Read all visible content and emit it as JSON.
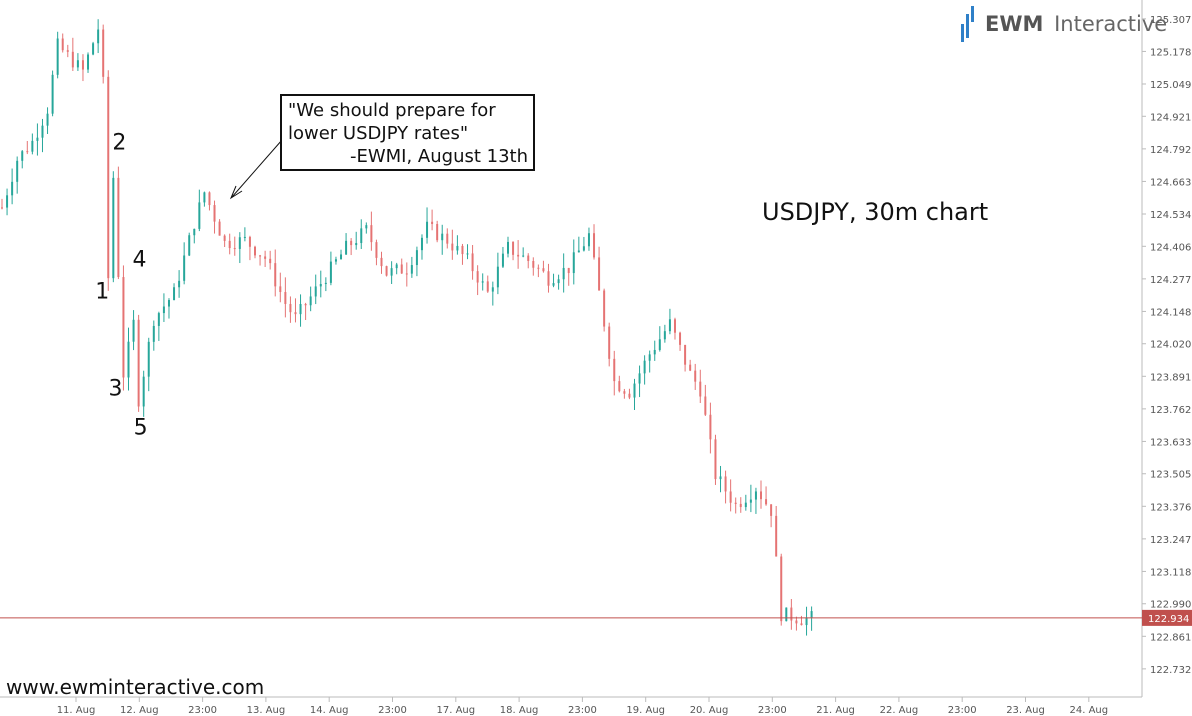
{
  "chart_data": {
    "type": "candlestick",
    "title": "USDJPY, 30m chart",
    "watermark_url": "www.ewminteractive.com",
    "logo": {
      "bold": "EWM",
      "light": "Interactive"
    },
    "ylim": [
      122.68,
      125.35
    ],
    "y_ticks": [
      "125.307",
      "125.178",
      "125.049",
      "124.921",
      "124.792",
      "124.663",
      "124.534",
      "124.406",
      "124.277",
      "124.148",
      "124.020",
      "123.891",
      "123.762",
      "123.633",
      "123.505",
      "123.376",
      "123.247",
      "123.118",
      "122.990",
      "122.861",
      "122.732"
    ],
    "x_ticks": [
      "11. Aug",
      "12. Aug",
      "23:00",
      "13. Aug",
      "14. Aug",
      "23:00",
      "17. Aug",
      "18. Aug",
      "23:00",
      "19. Aug",
      "20. Aug",
      "23:00",
      "21. Aug",
      "22. Aug",
      "23:00",
      "23. Aug",
      "24. Aug"
    ],
    "current_price": {
      "label": "122.934",
      "value": 122.934
    },
    "annotation": {
      "lines": [
        "\"We should prepare for",
        "lower USDJPY rates\"",
        "-EWMI, August 13th"
      ]
    },
    "wave_labels": [
      {
        "text": "1",
        "bar": 21,
        "price": 124.27
      },
      {
        "text": "2",
        "bar": 22,
        "price": 124.71
      },
      {
        "text": "3",
        "bar": 24,
        "price": 123.87
      },
      {
        "text": "4",
        "bar": 26,
        "price": 124.31
      },
      {
        "text": "5",
        "bar": 27,
        "price": 123.74
      }
    ],
    "colors": {
      "up": "#26a69a",
      "down": "#e57373",
      "price_line": "#c0504d"
    },
    "anchors": [
      [
        0,
        124.56
      ],
      [
        3,
        124.75
      ],
      [
        6,
        124.82
      ],
      [
        9,
        124.95
      ],
      [
        11,
        125.2
      ],
      [
        16,
        125.1
      ],
      [
        19,
        125.27
      ],
      [
        20,
        125.05
      ],
      [
        21,
        124.28
      ],
      [
        22,
        124.68
      ],
      [
        23,
        124.3
      ],
      [
        24,
        123.9
      ],
      [
        26,
        124.1
      ],
      [
        27,
        123.8
      ],
      [
        30,
        124.12
      ],
      [
        34,
        124.22
      ],
      [
        38,
        124.5
      ],
      [
        40,
        124.62
      ],
      [
        44,
        124.42
      ],
      [
        48,
        124.43
      ],
      [
        52,
        124.36
      ],
      [
        56,
        124.18
      ],
      [
        58,
        124.12
      ],
      [
        63,
        124.26
      ],
      [
        68,
        124.4
      ],
      [
        72,
        124.47
      ],
      [
        76,
        124.3
      ],
      [
        80,
        124.32
      ],
      [
        84,
        124.48
      ],
      [
        88,
        124.43
      ],
      [
        92,
        124.35
      ],
      [
        96,
        124.22
      ],
      [
        100,
        124.4
      ],
      [
        104,
        124.35
      ],
      [
        108,
        124.28
      ],
      [
        112,
        124.32
      ],
      [
        116,
        124.45
      ],
      [
        118,
        124.22
      ],
      [
        121,
        123.87
      ],
      [
        124,
        123.83
      ],
      [
        128,
        123.98
      ],
      [
        132,
        124.1
      ],
      [
        136,
        123.9
      ],
      [
        138,
        123.84
      ],
      [
        141,
        123.5
      ],
      [
        145,
        123.38
      ],
      [
        149,
        123.45
      ],
      [
        152,
        123.36
      ],
      [
        154,
        122.95
      ],
      [
        158,
        122.93
      ],
      [
        160,
        122.934
      ]
    ]
  }
}
